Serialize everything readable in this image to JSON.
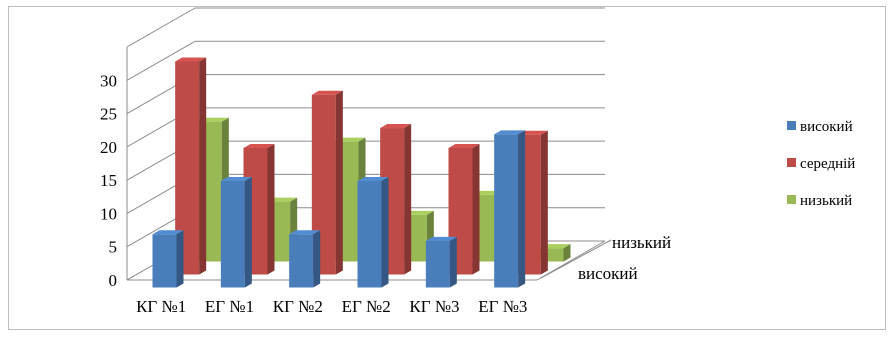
{
  "chart_data": {
    "type": "bar",
    "style": "3d-clustered-column",
    "categories": [
      "КГ №1",
      "ЕГ №1",
      "КГ №2",
      "ЕГ №2",
      "КГ №3",
      "ЕГ №3"
    ],
    "series": [
      {
        "name": "високий",
        "values": [
          8,
          16,
          8,
          16,
          7,
          23
        ],
        "color": "#4a7ebb"
      },
      {
        "name": "середній",
        "values": [
          32,
          19,
          27,
          22,
          19,
          21
        ],
        "color": "#be4b48"
      },
      {
        "name": "низький",
        "values": [
          21,
          9,
          18,
          7,
          10,
          2
        ],
        "color": "#98b954"
      }
    ],
    "depth_axis_labels": [
      "низький",
      "високий"
    ],
    "y_ticks": [
      "0",
      "5",
      "10",
      "15",
      "20",
      "25",
      "30"
    ],
    "ylim": [
      0,
      35
    ],
    "grid": true,
    "legend_position": "right"
  }
}
